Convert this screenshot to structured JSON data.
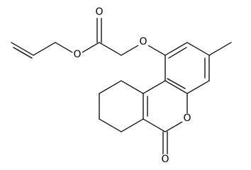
{
  "atoms": [
    "O",
    "O",
    "O",
    "O",
    "O"
  ]
}
